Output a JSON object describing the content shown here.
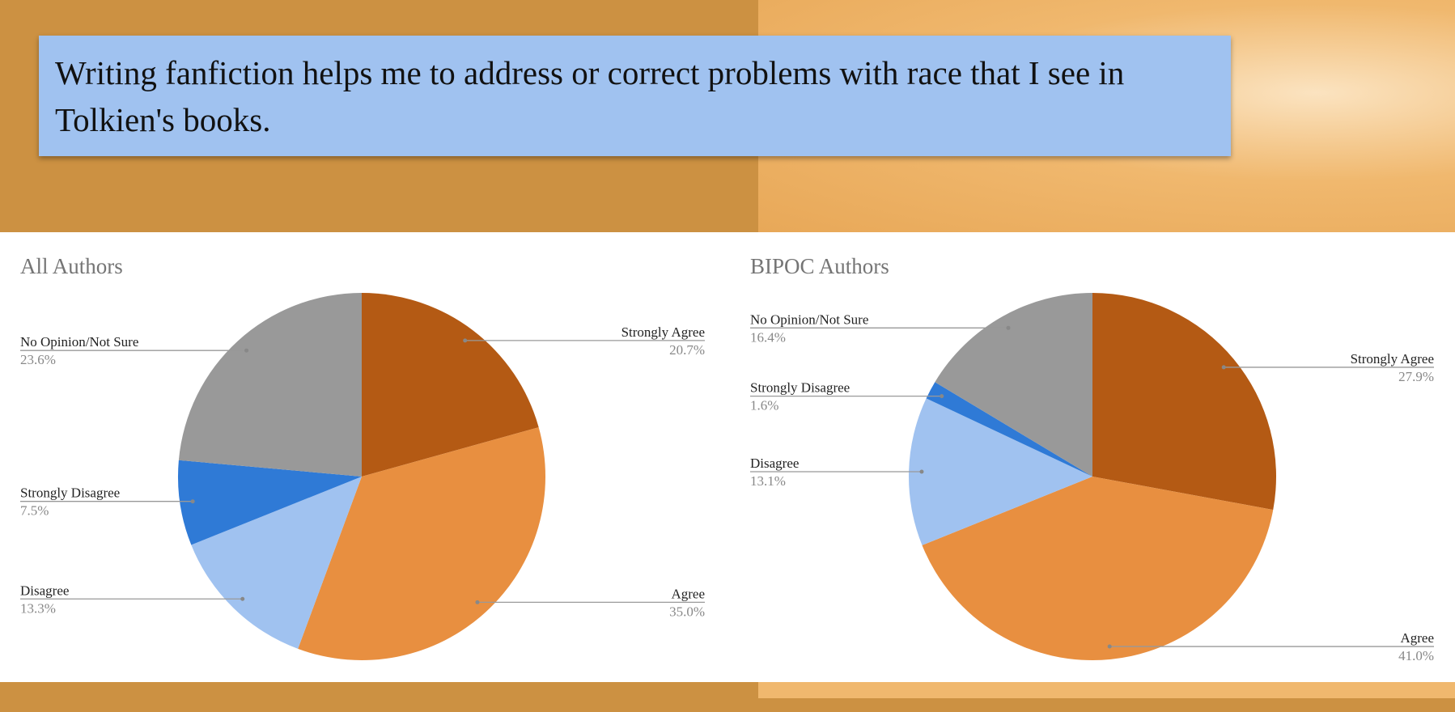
{
  "header": {
    "title": "Writing fanfiction helps me to address or correct problems with race that I see in Tolkien's books."
  },
  "chart_data": [
    {
      "type": "pie",
      "title": "All Authors",
      "categories": [
        "Strongly Agree",
        "Agree",
        "Disagree",
        "Strongly Disagree",
        "No Opinion/Not Sure"
      ],
      "values": [
        20.7,
        35.0,
        13.3,
        7.5,
        23.6
      ],
      "value_labels": [
        "20.7%",
        "35.0%",
        "13.3%",
        "7.5%",
        "23.6%"
      ],
      "colors": [
        "#b45a14",
        "#e88f40",
        "#a0c2f0",
        "#2f7ad6",
        "#999999"
      ]
    },
    {
      "type": "pie",
      "title": "BIPOC Authors",
      "categories": [
        "Strongly Agree",
        "Agree",
        "Disagree",
        "Strongly Disagree",
        "No Opinion/Not Sure"
      ],
      "values": [
        27.9,
        41.0,
        13.1,
        1.6,
        16.4
      ],
      "value_labels": [
        "27.9%",
        "41.0%",
        "13.1%",
        "1.6%",
        "16.4%"
      ],
      "colors": [
        "#b45a14",
        "#e88f40",
        "#a0c2f0",
        "#2f7ad6",
        "#999999"
      ]
    }
  ]
}
